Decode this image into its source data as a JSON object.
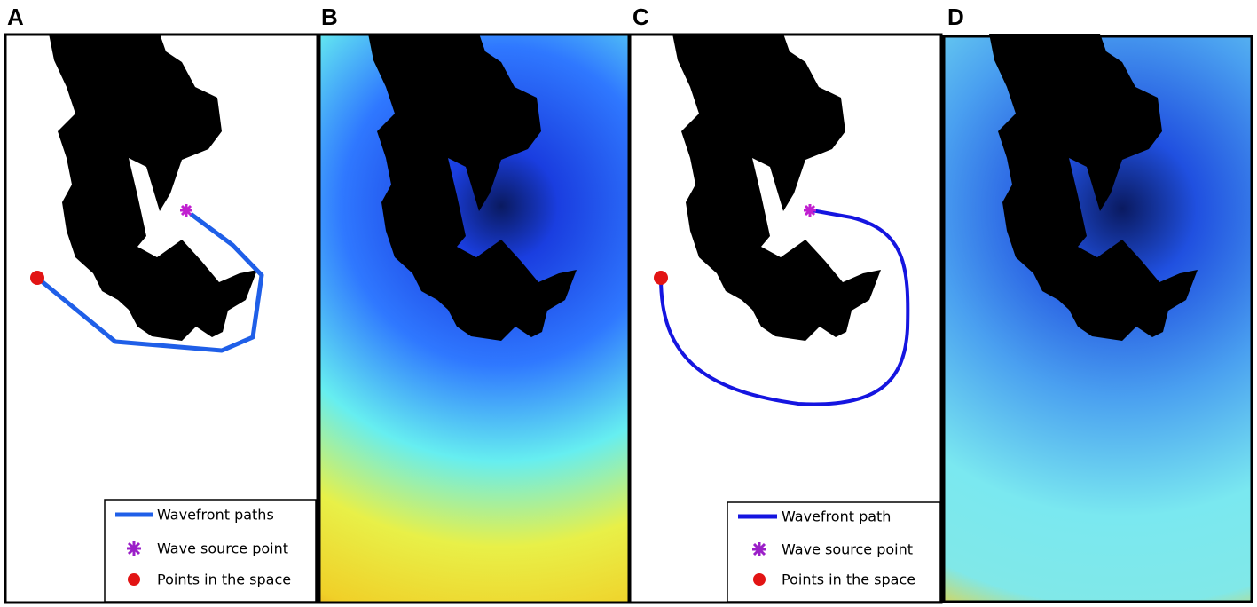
{
  "panels": [
    {
      "label": "A",
      "legend": [
        {
          "label": "Wavefront paths"
        },
        {
          "label": "Wave source point"
        },
        {
          "label": "Points in the space"
        }
      ]
    },
    {
      "label": "B"
    },
    {
      "label": "C",
      "legend": [
        {
          "label": "Wavefront path"
        },
        {
          "label": "Wave source point"
        },
        {
          "label": "Points in the space"
        }
      ]
    },
    {
      "label": "D"
    }
  ]
}
